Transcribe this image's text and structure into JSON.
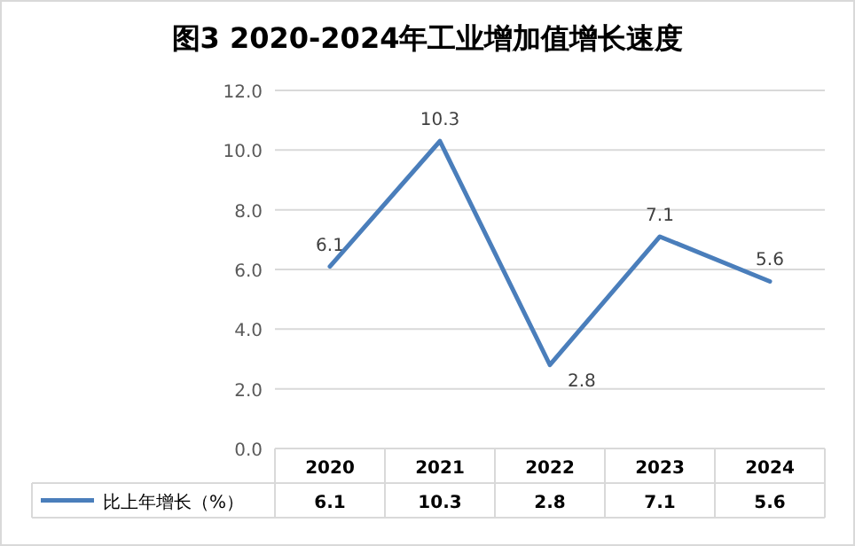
{
  "chart_data": {
    "type": "line",
    "title": "图3  2020-2024年工业增加值增长速度",
    "categories": [
      "2020",
      "2021",
      "2022",
      "2023",
      "2024"
    ],
    "series": [
      {
        "name": "比上年增长（%）",
        "color": "#4a7ebb",
        "values": [
          6.1,
          10.3,
          2.8,
          7.1,
          5.6
        ]
      }
    ],
    "annotations": [
      "6.1",
      "10.3",
      "2.8",
      "7.1",
      "5.6"
    ],
    "ylim": [
      0,
      12
    ],
    "yticks": [
      {
        "value": 0,
        "label": "0.0"
      },
      {
        "value": 2,
        "label": "2.0"
      },
      {
        "value": 4,
        "label": "4.0"
      },
      {
        "value": 6,
        "label": "6.0"
      },
      {
        "value": 8,
        "label": "8.0"
      },
      {
        "value": 10,
        "label": "10.0"
      },
      {
        "value": 12,
        "label": "12.0"
      }
    ],
    "grid": "y",
    "data_labels": true,
    "legend": "bottom",
    "marker": "none",
    "line_style": "solid"
  }
}
